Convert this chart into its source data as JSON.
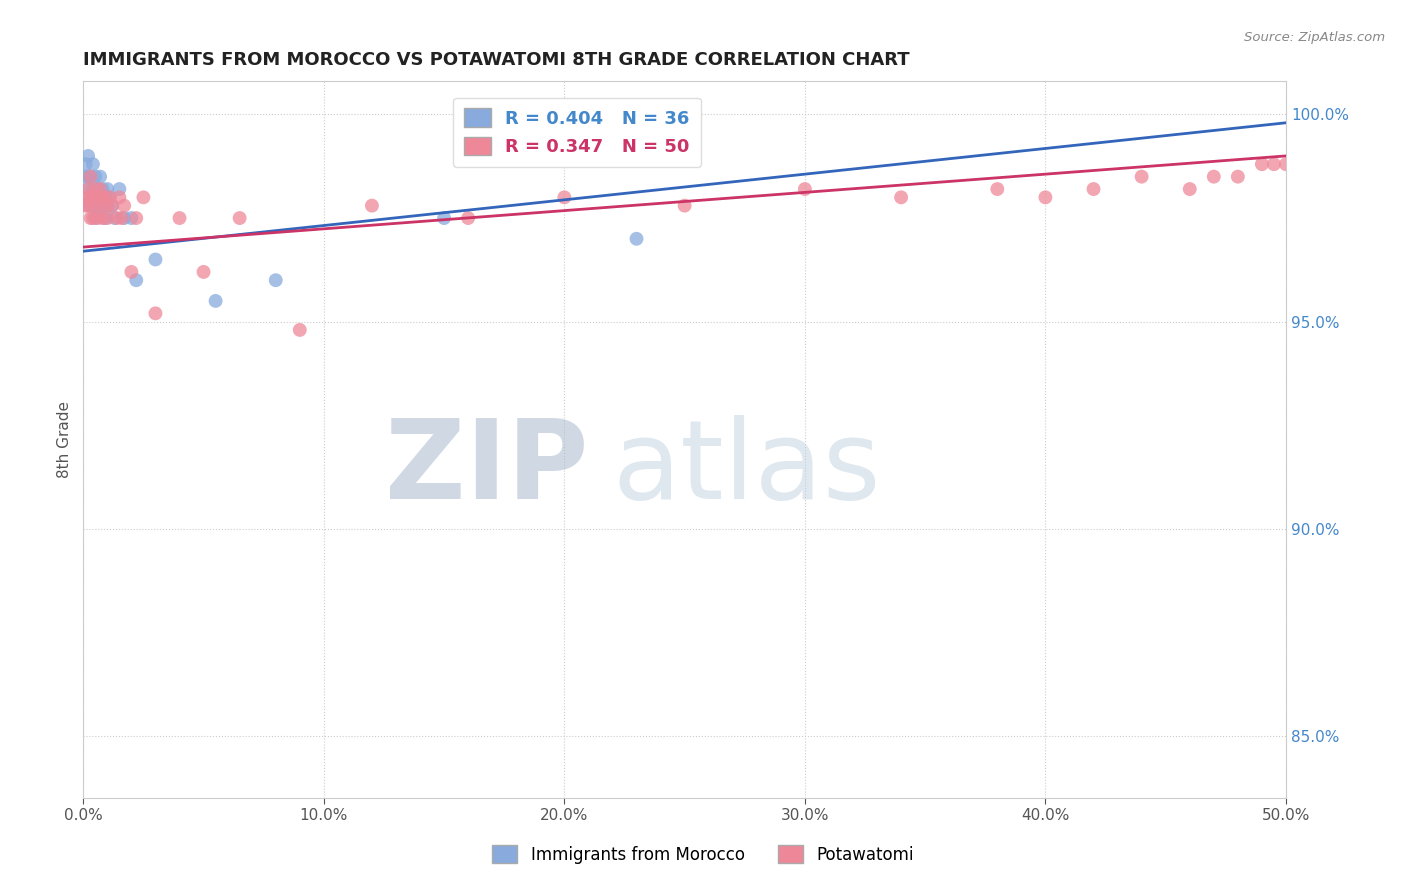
{
  "title": "IMMIGRANTS FROM MOROCCO VS POTAWATOMI 8TH GRADE CORRELATION CHART",
  "source": "Source: ZipAtlas.com",
  "ylabel": "8th Grade",
  "xlim": [
    0.0,
    0.5
  ],
  "ylim": [
    0.835,
    1.008
  ],
  "xticks": [
    0.0,
    0.1,
    0.2,
    0.3,
    0.4,
    0.5
  ],
  "xtick_labels": [
    "0.0%",
    "10.0%",
    "20.0%",
    "30.0%",
    "40.0%",
    "50.0%"
  ],
  "yticks_right": [
    0.85,
    0.9,
    0.95,
    1.0
  ],
  "ytick_labels_right": [
    "85.0%",
    "90.0%",
    "95.0%",
    "100.0%"
  ],
  "blue_color": "#88AADD",
  "pink_color": "#EE8899",
  "blue_line_color": "#3366BB",
  "pink_line_color": "#CC3366",
  "blue_R": 0.404,
  "blue_N": 36,
  "pink_R": 0.347,
  "pink_N": 50,
  "legend_blue_label": "Immigrants from Morocco",
  "legend_pink_label": "Potawatomi",
  "blue_scatter_x": [
    0.001,
    0.001,
    0.002,
    0.002,
    0.002,
    0.003,
    0.003,
    0.003,
    0.004,
    0.004,
    0.004,
    0.005,
    0.005,
    0.005,
    0.006,
    0.006,
    0.007,
    0.007,
    0.008,
    0.008,
    0.009,
    0.009,
    0.01,
    0.01,
    0.011,
    0.012,
    0.013,
    0.015,
    0.017,
    0.02,
    0.022,
    0.03,
    0.055,
    0.08,
    0.15,
    0.23
  ],
  "blue_scatter_y": [
    0.988,
    0.985,
    0.99,
    0.985,
    0.982,
    0.985,
    0.98,
    0.978,
    0.988,
    0.982,
    0.978,
    0.985,
    0.98,
    0.975,
    0.982,
    0.978,
    0.985,
    0.98,
    0.982,
    0.978,
    0.98,
    0.975,
    0.982,
    0.978,
    0.98,
    0.978,
    0.975,
    0.982,
    0.975,
    0.975,
    0.96,
    0.965,
    0.955,
    0.96,
    0.975,
    0.97
  ],
  "pink_scatter_x": [
    0.001,
    0.001,
    0.002,
    0.002,
    0.003,
    0.003,
    0.003,
    0.004,
    0.004,
    0.005,
    0.005,
    0.006,
    0.006,
    0.007,
    0.007,
    0.008,
    0.008,
    0.009,
    0.01,
    0.01,
    0.011,
    0.012,
    0.014,
    0.015,
    0.016,
    0.017,
    0.02,
    0.022,
    0.025,
    0.03,
    0.04,
    0.05,
    0.065,
    0.09,
    0.12,
    0.16,
    0.2,
    0.25,
    0.3,
    0.34,
    0.38,
    0.4,
    0.42,
    0.44,
    0.46,
    0.47,
    0.48,
    0.49,
    0.495,
    0.5
  ],
  "pink_scatter_y": [
    0.98,
    0.978,
    0.982,
    0.978,
    0.985,
    0.98,
    0.975,
    0.98,
    0.975,
    0.982,
    0.978,
    0.98,
    0.975,
    0.982,
    0.978,
    0.98,
    0.975,
    0.98,
    0.978,
    0.975,
    0.98,
    0.978,
    0.975,
    0.98,
    0.975,
    0.978,
    0.962,
    0.975,
    0.98,
    0.952,
    0.975,
    0.962,
    0.975,
    0.948,
    0.978,
    0.975,
    0.98,
    0.978,
    0.982,
    0.98,
    0.982,
    0.98,
    0.982,
    0.985,
    0.982,
    0.985,
    0.985,
    0.988,
    0.988,
    0.988
  ],
  "blue_trend_x": [
    0.0,
    0.5
  ],
  "blue_trend_y": [
    0.967,
    0.998
  ],
  "pink_trend_x": [
    0.0,
    0.5
  ],
  "pink_trend_y": [
    0.968,
    0.99
  ]
}
